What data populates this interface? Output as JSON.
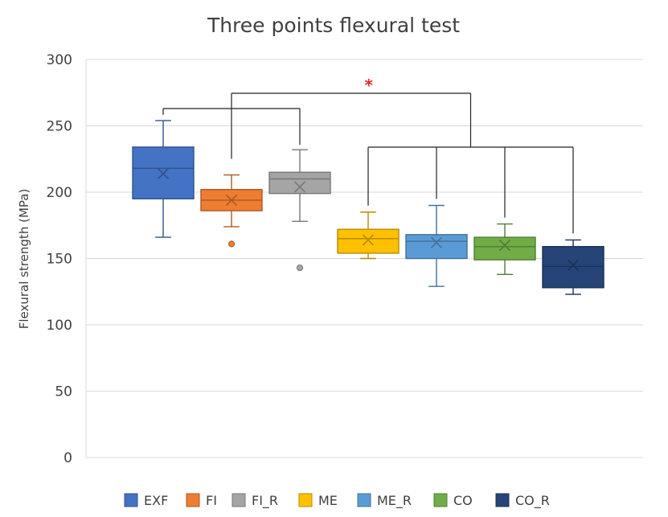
{
  "chart_data": {
    "type": "box",
    "title": "Three points flexural test",
    "ylabel": "Flexural strength (MPa)",
    "xlabel": "",
    "ylim": [
      0,
      300
    ],
    "yticks": [
      0,
      50,
      100,
      150,
      200,
      250,
      300
    ],
    "grid": "horizontal",
    "legend_position": "bottom",
    "significance_marker": "*",
    "significance_brackets": [
      {
        "groups": [
          "EXF",
          "FI_R"
        ],
        "joined_to": "FI"
      },
      {
        "groups": [
          "ME",
          "ME_R",
          "CO",
          "CO_R"
        ],
        "joined_to": "FI"
      }
    ],
    "series": [
      {
        "name": "EXF",
        "color": "#4472C4",
        "min": 166,
        "q1": 195,
        "median": 218,
        "q3": 234,
        "max": 254,
        "mean": 214,
        "outliers": []
      },
      {
        "name": "FI",
        "color": "#ED7D31",
        "min": 174,
        "q1": 186,
        "median": 194,
        "q3": 202,
        "max": 213,
        "mean": 194,
        "outliers": [
          161
        ]
      },
      {
        "name": "FI_R",
        "color": "#A5A5A5",
        "min": 178,
        "q1": 199,
        "median": 210,
        "q3": 215,
        "max": 232,
        "mean": 204,
        "outliers": [
          143
        ]
      },
      {
        "name": "ME",
        "color": "#FFC000",
        "min": 150,
        "q1": 154,
        "median": 165,
        "q3": 172,
        "max": 185,
        "mean": 164,
        "outliers": []
      },
      {
        "name": "ME_R",
        "color": "#5B9BD5",
        "min": 129,
        "q1": 150,
        "median": 163,
        "q3": 168,
        "max": 190,
        "mean": 162,
        "outliers": []
      },
      {
        "name": "CO",
        "color": "#70AD47",
        "min": 138,
        "q1": 149,
        "median": 159,
        "q3": 166,
        "max": 176,
        "mean": 160,
        "outliers": []
      },
      {
        "name": "CO_R",
        "color": "#264478",
        "min": 123,
        "q1": 128,
        "median": 144,
        "q3": 159,
        "max": 164,
        "mean": 145,
        "outliers": []
      }
    ]
  }
}
